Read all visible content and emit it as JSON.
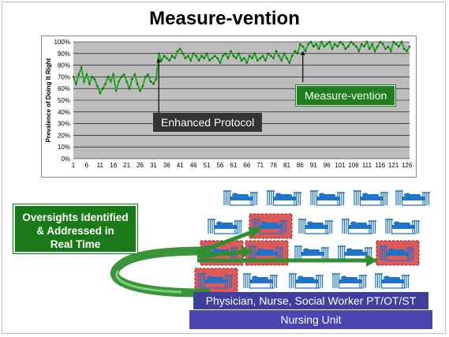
{
  "title": "Measure-vention",
  "chart_data": {
    "type": "line",
    "ylabel": "Prevalence of Doing It Right",
    "xlabel": "",
    "ylim": [
      0,
      100
    ],
    "yticks": [
      "0%",
      "10%",
      "20%",
      "30%",
      "40%",
      "50%",
      "60%",
      "70%",
      "80%",
      "90%",
      "100%"
    ],
    "xticks": [
      "1",
      "6",
      "11",
      "16",
      "21",
      "26",
      "31",
      "36",
      "41",
      "46",
      "51",
      "56",
      "61",
      "66",
      "71",
      "76",
      "81",
      "86",
      "91",
      "96",
      "101",
      "106",
      "111",
      "116",
      "121",
      "126"
    ],
    "grid": true,
    "line_color": "#22aa22",
    "x": [
      1,
      2,
      3,
      4,
      5,
      6,
      7,
      8,
      9,
      10,
      11,
      12,
      13,
      14,
      15,
      16,
      17,
      18,
      19,
      20,
      21,
      22,
      23,
      24,
      25,
      26,
      27,
      28,
      29,
      30,
      31,
      32,
      33,
      34,
      35,
      36,
      37,
      38,
      39,
      40,
      41,
      42,
      43,
      44,
      45,
      46,
      47,
      48,
      49,
      50,
      51,
      52,
      53,
      54,
      55,
      56,
      57,
      58,
      59,
      60,
      61,
      62,
      63,
      64,
      65,
      66,
      67,
      68,
      69,
      70,
      71,
      72,
      73,
      74,
      75,
      76,
      77,
      78,
      79,
      80,
      81,
      82,
      83,
      84,
      85,
      86,
      87,
      88,
      89,
      90,
      91,
      92,
      93,
      94,
      95,
      96,
      97,
      98,
      99,
      100,
      101,
      102,
      103,
      104,
      105,
      106,
      107,
      108,
      109,
      110,
      111,
      112,
      113,
      114,
      115,
      116,
      117,
      118,
      119,
      120,
      121,
      122,
      123,
      124,
      125,
      126,
      127
    ],
    "values": [
      70,
      64,
      72,
      78,
      66,
      72,
      64,
      70,
      68,
      62,
      56,
      60,
      64,
      70,
      66,
      72,
      58,
      66,
      70,
      72,
      66,
      60,
      68,
      72,
      64,
      58,
      62,
      70,
      72,
      66,
      64,
      68,
      90,
      84,
      88,
      86,
      84,
      88,
      86,
      92,
      94,
      90,
      86,
      88,
      84,
      90,
      88,
      84,
      88,
      86,
      90,
      84,
      86,
      88,
      86,
      82,
      88,
      90,
      86,
      92,
      88,
      86,
      90,
      84,
      86,
      82,
      88,
      86,
      90,
      84,
      86,
      88,
      84,
      90,
      88,
      86,
      92,
      88,
      84,
      90,
      86,
      82,
      88,
      92,
      90,
      98,
      96,
      92,
      98,
      100,
      96,
      98,
      94,
      100,
      96,
      98,
      100,
      94,
      98,
      96,
      100,
      98,
      94,
      96,
      100,
      98,
      96,
      92,
      98,
      96,
      100,
      94,
      98,
      92,
      96,
      100,
      98,
      94,
      96,
      92,
      100,
      98,
      96,
      100,
      94,
      92,
      96
    ],
    "annotations": [
      {
        "label": "Enhanced Protocol",
        "at_x": 33
      },
      {
        "label": "Measure-vention",
        "at_x": 87
      }
    ]
  },
  "oversight_box": {
    "lines": [
      "Oversights Identified",
      "& Addressed in",
      "Real Time"
    ]
  },
  "bars": {
    "staff": "Physician, Nurse, Social Worker PT/OT/ST",
    "unit": "Nursing Unit"
  },
  "colors": {
    "bed_blue": "#1f73c8",
    "bed_highlight": "#e05858",
    "arrow_green": "#2f8f2f",
    "callout_green": "#1a7a1a",
    "callout_dark": "#333333"
  }
}
